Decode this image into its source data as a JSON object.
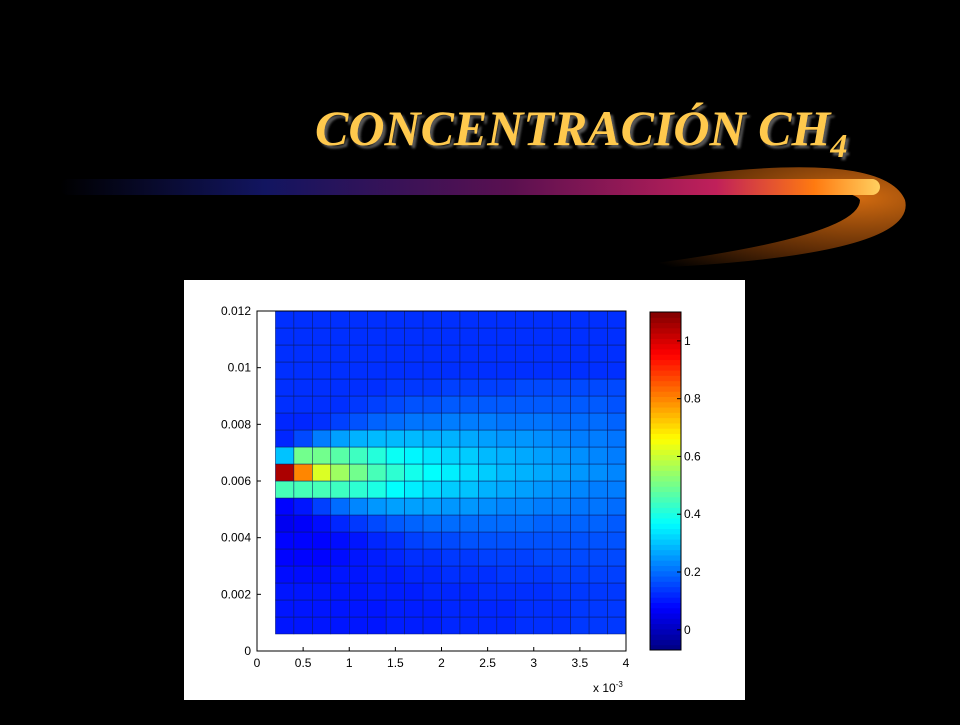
{
  "chart_data": {
    "type": "heatmap",
    "title": {
      "text": "CONCENTRACIÓN CH",
      "subscript": "4"
    },
    "x_exponent_label": {
      "base": "x 10",
      "exponent": "-3"
    },
    "x": [
      0.0003,
      0.0005,
      0.0007,
      0.0009,
      0.0011,
      0.0013,
      0.0015,
      0.0017,
      0.0019,
      0.0021,
      0.0023,
      0.0025,
      0.0027,
      0.0029,
      0.0031,
      0.0033,
      0.0035,
      0.0037,
      0.0039
    ],
    "y": [
      0.0009,
      0.0015,
      0.0021,
      0.0027,
      0.0033,
      0.0039,
      0.0045,
      0.0051,
      0.0057,
      0.0063,
      0.0069,
      0.0075,
      0.0081,
      0.0087,
      0.0093,
      0.0099,
      0.0105,
      0.0111,
      0.0117
    ],
    "z": [
      [
        0.1,
        0.1,
        0.1,
        0.1,
        0.1,
        0.1,
        0.11,
        0.11,
        0.11,
        0.12,
        0.12,
        0.12,
        0.12,
        0.13,
        0.13,
        0.13,
        0.14,
        0.14,
        0.14
      ],
      [
        0.1,
        0.1,
        0.1,
        0.1,
        0.1,
        0.1,
        0.11,
        0.11,
        0.11,
        0.12,
        0.12,
        0.12,
        0.12,
        0.13,
        0.13,
        0.13,
        0.14,
        0.14,
        0.14
      ],
      [
        0.1,
        0.1,
        0.1,
        0.1,
        0.1,
        0.11,
        0.11,
        0.11,
        0.12,
        0.12,
        0.12,
        0.13,
        0.13,
        0.13,
        0.13,
        0.14,
        0.14,
        0.14,
        0.14
      ],
      [
        0.09,
        0.09,
        0.09,
        0.1,
        0.1,
        0.11,
        0.11,
        0.12,
        0.12,
        0.13,
        0.13,
        0.13,
        0.14,
        0.14,
        0.14,
        0.15,
        0.15,
        0.15,
        0.15
      ],
      [
        0.08,
        0.08,
        0.08,
        0.09,
        0.1,
        0.11,
        0.12,
        0.13,
        0.13,
        0.14,
        0.14,
        0.15,
        0.15,
        0.15,
        0.16,
        0.16,
        0.16,
        0.16,
        0.16
      ],
      [
        0.08,
        0.08,
        0.08,
        0.09,
        0.1,
        0.12,
        0.13,
        0.15,
        0.16,
        0.16,
        0.17,
        0.17,
        0.17,
        0.17,
        0.17,
        0.17,
        0.17,
        0.17,
        0.17
      ],
      [
        0.06,
        0.07,
        0.09,
        0.12,
        0.14,
        0.16,
        0.18,
        0.19,
        0.2,
        0.2,
        0.2,
        0.2,
        0.2,
        0.2,
        0.19,
        0.19,
        0.19,
        0.19,
        0.18
      ],
      [
        0.08,
        0.1,
        0.15,
        0.2,
        0.23,
        0.25,
        0.26,
        0.26,
        0.26,
        0.25,
        0.25,
        0.24,
        0.23,
        0.23,
        0.22,
        0.22,
        0.21,
        0.21,
        0.2
      ],
      [
        0.45,
        0.45,
        0.45,
        0.44,
        0.42,
        0.4,
        0.37,
        0.35,
        0.33,
        0.31,
        0.3,
        0.28,
        0.27,
        0.26,
        0.25,
        0.24,
        0.23,
        0.22,
        0.22
      ],
      [
        1.05,
        0.8,
        0.62,
        0.55,
        0.5,
        0.45,
        0.42,
        0.39,
        0.37,
        0.35,
        0.33,
        0.31,
        0.29,
        0.28,
        0.27,
        0.26,
        0.25,
        0.24,
        0.23
      ],
      [
        0.3,
        0.5,
        0.5,
        0.47,
        0.44,
        0.41,
        0.38,
        0.36,
        0.34,
        0.32,
        0.31,
        0.29,
        0.28,
        0.27,
        0.26,
        0.25,
        0.24,
        0.23,
        0.22
      ],
      [
        0.12,
        0.16,
        0.22,
        0.26,
        0.28,
        0.29,
        0.29,
        0.29,
        0.28,
        0.28,
        0.27,
        0.26,
        0.25,
        0.25,
        0.24,
        0.23,
        0.22,
        0.22,
        0.21
      ],
      [
        0.12,
        0.12,
        0.13,
        0.15,
        0.17,
        0.19,
        0.2,
        0.21,
        0.21,
        0.22,
        0.22,
        0.22,
        0.21,
        0.21,
        0.21,
        0.2,
        0.2,
        0.2,
        0.19
      ],
      [
        0.13,
        0.13,
        0.13,
        0.13,
        0.14,
        0.15,
        0.16,
        0.17,
        0.17,
        0.18,
        0.18,
        0.18,
        0.18,
        0.18,
        0.18,
        0.18,
        0.18,
        0.18,
        0.17
      ],
      [
        0.13,
        0.13,
        0.13,
        0.13,
        0.13,
        0.13,
        0.14,
        0.14,
        0.14,
        0.15,
        0.15,
        0.15,
        0.15,
        0.16,
        0.16,
        0.16,
        0.16,
        0.16,
        0.16
      ],
      [
        0.13,
        0.13,
        0.13,
        0.13,
        0.13,
        0.13,
        0.13,
        0.13,
        0.13,
        0.13,
        0.13,
        0.13,
        0.13,
        0.13,
        0.13,
        0.13,
        0.13,
        0.13,
        0.13
      ],
      [
        0.13,
        0.13,
        0.13,
        0.13,
        0.13,
        0.13,
        0.13,
        0.13,
        0.13,
        0.13,
        0.13,
        0.13,
        0.13,
        0.13,
        0.13,
        0.13,
        0.13,
        0.13,
        0.13
      ],
      [
        0.13,
        0.13,
        0.13,
        0.13,
        0.13,
        0.13,
        0.13,
        0.13,
        0.13,
        0.13,
        0.13,
        0.13,
        0.13,
        0.13,
        0.13,
        0.13,
        0.13,
        0.13,
        0.13
      ],
      [
        0.13,
        0.13,
        0.13,
        0.13,
        0.13,
        0.13,
        0.13,
        0.13,
        0.13,
        0.13,
        0.13,
        0.13,
        0.13,
        0.13,
        0.13,
        0.13,
        0.13,
        0.13,
        0.13
      ]
    ],
    "xlim": [
      0,
      0.004
    ],
    "xticks": [
      0,
      {
        "value": 0.0005,
        "label": "0.5"
      },
      {
        "value": 0.001,
        "label": "1"
      },
      {
        "value": 0.0015,
        "label": "1.5"
      },
      {
        "value": 0.002,
        "label": "2"
      },
      {
        "value": 0.0025,
        "label": "2.5"
      },
      {
        "value": 0.003,
        "label": "3"
      },
      {
        "value": 0.0035,
        "label": "3.5"
      },
      {
        "value": 0.004,
        "label": "4"
      }
    ],
    "ylim": [
      0,
      0.012
    ],
    "yticks": [
      0,
      0.002,
      0.004,
      0.006,
      0.008,
      0.01,
      0.012
    ],
    "clim": [
      -0.07,
      1.1
    ],
    "cticks": [
      0,
      0.2,
      0.4,
      0.6,
      0.8,
      1
    ],
    "colormap": "jet"
  }
}
